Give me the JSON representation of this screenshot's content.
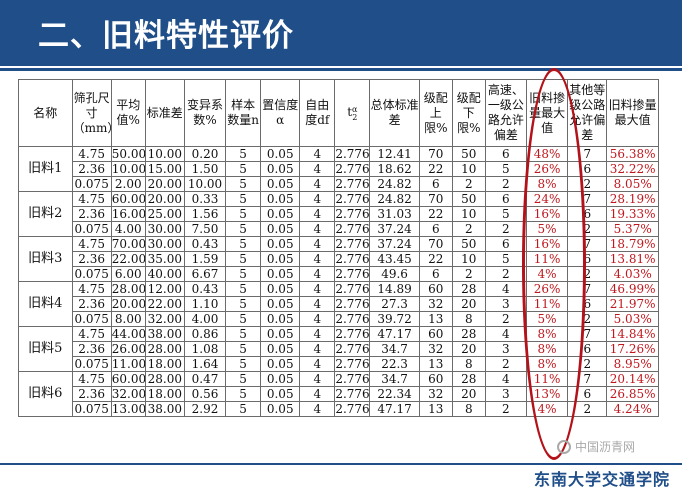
{
  "title": "二、旧料特性评价",
  "table": {
    "headers": [
      "名称",
      "筛孔尺寸（mm）",
      "平均值%",
      "标准差",
      "变异系数%",
      "样本数量n",
      "置信度α",
      "自由度df",
      "",
      "总体标准差",
      "级配上限%",
      "级配下限%",
      "高速、一级公路允许偏差",
      "旧料掺量最大值",
      "其他等级公路允许偏差",
      "旧料掺量最大值"
    ],
    "t_symbol": "t",
    "t_sub": "α",
    "t_den": "2",
    "groups": [
      {
        "name": "旧料1",
        "rows": [
          [
            "4.75",
            "50.00",
            "10.00",
            "0.20",
            "5",
            "0.05",
            "4",
            "2.776",
            "12.41",
            "70",
            "50",
            "6",
            "48%",
            "7",
            "56.38%"
          ],
          [
            "2.36",
            "10.00",
            "15.00",
            "1.50",
            "5",
            "0.05",
            "4",
            "2.776",
            "18.62",
            "22",
            "10",
            "5",
            "26%",
            "6",
            "32.22%"
          ],
          [
            "0.075",
            "2.00",
            "20.00",
            "10.00",
            "5",
            "0.05",
            "4",
            "2.776",
            "24.82",
            "6",
            "2",
            "2",
            "8%",
            "2",
            "8.05%"
          ]
        ]
      },
      {
        "name": "旧料2",
        "rows": [
          [
            "4.75",
            "60.00",
            "20.00",
            "0.33",
            "5",
            "0.05",
            "4",
            "2.776",
            "24.82",
            "70",
            "50",
            "6",
            "24%",
            "7",
            "28.19%"
          ],
          [
            "2.36",
            "16.00",
            "25.00",
            "1.56",
            "5",
            "0.05",
            "4",
            "2.776",
            "31.03",
            "22",
            "10",
            "5",
            "16%",
            "6",
            "19.33%"
          ],
          [
            "0.075",
            "4.00",
            "30.00",
            "7.50",
            "5",
            "0.05",
            "4",
            "2.776",
            "37.24",
            "6",
            "2",
            "2",
            "5%",
            "2",
            "5.37%"
          ]
        ]
      },
      {
        "name": "旧料3",
        "rows": [
          [
            "4.75",
            "70.00",
            "30.00",
            "0.43",
            "5",
            "0.05",
            "4",
            "2.776",
            "37.24",
            "70",
            "50",
            "6",
            "16%",
            "7",
            "18.79%"
          ],
          [
            "2.36",
            "22.00",
            "35.00",
            "1.59",
            "5",
            "0.05",
            "4",
            "2.776",
            "43.45",
            "22",
            "10",
            "5",
            "11%",
            "6",
            "13.81%"
          ],
          [
            "0.075",
            "6.00",
            "40.00",
            "6.67",
            "5",
            "0.05",
            "4",
            "2.776",
            "49.6",
            "6",
            "2",
            "2",
            "4%",
            "2",
            "4.03%"
          ]
        ]
      },
      {
        "name": "旧料4",
        "rows": [
          [
            "4.75",
            "28.00",
            "12.00",
            "0.43",
            "5",
            "0.05",
            "4",
            "2.776",
            "14.89",
            "60",
            "28",
            "4",
            "26%",
            "7",
            "46.99%"
          ],
          [
            "2.36",
            "20.00",
            "22.00",
            "1.10",
            "5",
            "0.05",
            "4",
            "2.776",
            "27.3",
            "32",
            "20",
            "3",
            "11%",
            "6",
            "21.97%"
          ],
          [
            "0.075",
            "8.00",
            "32.00",
            "4.00",
            "5",
            "0.05",
            "4",
            "2.776",
            "39.72",
            "13",
            "8",
            "2",
            "5%",
            "2",
            "5.03%"
          ]
        ]
      },
      {
        "name": "旧料5",
        "rows": [
          [
            "4.75",
            "44.00",
            "38.00",
            "0.86",
            "5",
            "0.05",
            "4",
            "2.776",
            "47.17",
            "60",
            "28",
            "4",
            "8%",
            "7",
            "14.84%"
          ],
          [
            "2.36",
            "26.00",
            "28.00",
            "1.08",
            "5",
            "0.05",
            "4",
            "2.776",
            "34.7",
            "32",
            "20",
            "3",
            "8%",
            "6",
            "17.26%"
          ],
          [
            "0.075",
            "11.00",
            "18.00",
            "1.64",
            "5",
            "0.05",
            "4",
            "2.776",
            "22.3",
            "13",
            "8",
            "2",
            "8%",
            "2",
            "8.95%"
          ]
        ]
      },
      {
        "name": "旧料6",
        "rows": [
          [
            "4.75",
            "60.00",
            "28.00",
            "0.47",
            "5",
            "0.05",
            "4",
            "2.776",
            "34.7",
            "60",
            "28",
            "4",
            "11%",
            "7",
            "20.14%"
          ],
          [
            "2.36",
            "32.00",
            "18.00",
            "0.56",
            "5",
            "0.05",
            "4",
            "2.776",
            "22.34",
            "32",
            "20",
            "3",
            "13%",
            "6",
            "26.85%"
          ],
          [
            "0.075",
            "13.00",
            "38.00",
            "2.92",
            "5",
            "0.05",
            "4",
            "2.776",
            "47.17",
            "13",
            "8",
            "2",
            "4%",
            "2",
            "4.24%"
          ]
        ]
      }
    ]
  },
  "footer": {
    "school": "东南大学交通学院",
    "watermark": "中国沥青网"
  },
  "colors": {
    "brand": "#1f4e89",
    "highlight": "#c0181e"
  }
}
